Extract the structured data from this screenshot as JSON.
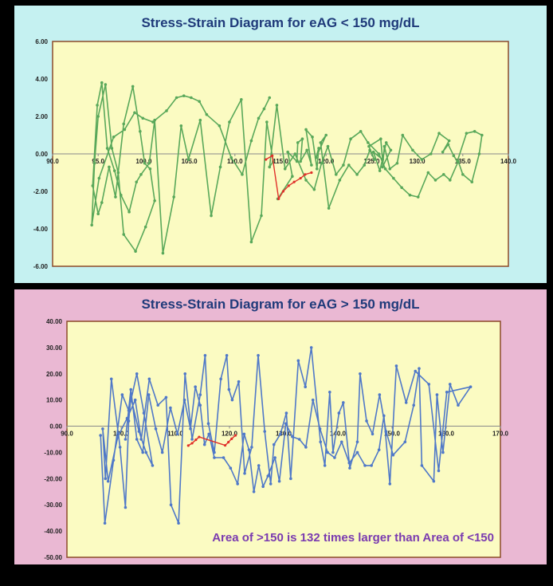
{
  "chart_data": [
    {
      "type": "line",
      "title": "Stress-Strain Diagram for eAG < 150 mg/dL",
      "xlim": [
        90,
        140
      ],
      "ylim": [
        -6,
        6
      ],
      "x_ticks": [
        "90.0",
        "95.0",
        "100.0",
        "105.0",
        "110.0",
        "115.0",
        "120.0",
        "125.0",
        "130.0",
        "135.0",
        "140.0"
      ],
      "y_ticks": [
        "6.00",
        "4.00",
        "2.00",
        "0.00",
        "-2.00",
        "-4.00",
        "-6.00"
      ],
      "colors": {
        "plot_bg": "#fbfbc2",
        "series": "#59a85a",
        "highlight": "#e0302a",
        "axis": "#8b4a2b"
      },
      "series": [
        {
          "x": [
            114.7,
            116.3,
            115.8,
            116.8,
            116.9,
            117.4,
            117.2,
            117.9,
            118.4,
            117.8,
            118.5,
            119.0,
            119.2,
            118.9,
            120.0,
            119.4,
            120.3,
            121.5,
            122.5,
            123.4,
            124.2,
            124.8,
            125.3,
            124.7,
            126.0,
            126.2,
            125.2,
            125.9,
            126.6,
            127.1,
            126.2,
            126.4,
            127.0,
            127.8,
            128.4,
            129.5,
            130.5,
            131.5,
            132.4,
            133.5,
            132.8,
            133.4,
            134.0,
            134.4,
            135.4,
            136.3,
            137.1,
            136.8,
            136.0,
            135.0,
            134.5,
            133.6,
            132.9,
            132.0,
            131.2,
            130.1,
            129.2,
            128.3,
            127.4,
            126.5,
            125.8,
            124.6,
            123.8,
            122.7,
            121.9,
            121.1,
            120.2,
            119.5,
            118.7,
            117.8,
            116.6,
            115.5,
            114.6,
            113.8,
            114.2,
            113.5,
            112.9,
            111.8,
            110.7,
            109.4,
            108.4,
            107.4,
            106.2,
            104.9,
            104.1,
            103.3,
            102.1,
            101.2,
            100.6,
            99.7,
            99.2,
            98.4,
            97.5,
            96.8,
            96.0,
            95.4,
            94.9,
            94.4,
            95.0,
            95.4,
            96.2,
            96.9,
            97.8,
            98.8,
            99.6,
            100.1,
            100.7,
            101.2,
            100.2,
            99.1,
            97.8,
            97.2,
            96.5,
            95.8,
            95.0,
            94.6,
            94.3,
            95.1,
            96.7,
            97.9,
            99.0,
            99.9,
            101.0,
            102.5,
            103.6,
            104.4,
            105.2,
            106.1,
            106.9,
            108.3,
            109.6,
            110.8,
            111.8,
            112.6,
            113.2,
            113.8
          ],
          "y": [
            -2.4,
            -1.2,
            0.1,
            -0.4,
            0.6,
            0.8,
            -0.4,
            0.2,
            -0.6,
            1.3,
            0.9,
            -0.8,
            0.3,
            -0.2,
            1.0,
            0.6,
            -2.9,
            -1.4,
            -0.6,
            -1.1,
            -0.6,
            0.2,
            -0.3,
            0.4,
            0.8,
            -0.3,
            0.1,
            -0.9,
            0.6,
            0.2,
            -0.7,
            0.4,
            -0.8,
            -0.5,
            1.0,
            0.2,
            -0.3,
            0.0,
            1.1,
            0.7,
            0.1,
            0.5,
            -0.1,
            -0.4,
            1.1,
            1.2,
            1.0,
            0.0,
            -1.5,
            -1.1,
            -0.4,
            -1.4,
            -1.1,
            -1.4,
            -1.0,
            -2.3,
            -2.2,
            -1.8,
            -1.3,
            -0.8,
            0.0,
            0.6,
            1.2,
            0.8,
            -0.6,
            -1.1,
            0.4,
            -0.5,
            -1.9,
            -1.4,
            0.0,
            -0.8,
            2.6,
            -0.7,
            -0.4,
            1.7,
            -3.3,
            -4.7,
            2.9,
            1.7,
            -0.7,
            -3.3,
            1.8,
            -0.3,
            1.5,
            -2.3,
            -5.3,
            1.8,
            -0.5,
            -1.1,
            -1.5,
            -3.1,
            -2.2,
            -0.9,
            0.3,
            3.8,
            2.6,
            -1.7,
            -3.2,
            -2.6,
            -0.7,
            -2.3,
            1.6,
            3.6,
            1.2,
            -0.5,
            -0.8,
            -2.5,
            -3.9,
            -5.2,
            -4.3,
            -1.0,
            0.3,
            3.7,
            2.0,
            -0.5,
            -3.8,
            -1.3,
            0.9,
            1.3,
            2.2,
            1.9,
            1.7,
            2.3,
            3.0,
            3.1,
            3.0,
            2.8,
            2.1,
            1.5,
            -0.2,
            -1.1,
            0.7,
            1.9,
            2.4,
            3.0
          ]
        }
      ],
      "highlight": {
        "x": [
          113.4,
          114.1,
          114.8,
          115.3,
          115.9,
          116.5,
          117.2,
          117.7,
          118.4
        ],
        "y": [
          -0.3,
          -0.1,
          -2.4,
          -2.0,
          -1.7,
          -1.5,
          -1.3,
          -1.1,
          -1.0
        ]
      }
    },
    {
      "type": "line",
      "title": "Stress-Strain Diagram for eAG > 150 mg/dL",
      "xlim": [
        90,
        170
      ],
      "ylim": [
        -50,
        40
      ],
      "x_ticks": [
        "90.0",
        "100.0",
        "110.0",
        "120.0",
        "130.0",
        "140.0",
        "150.0",
        "160.0",
        "170.0"
      ],
      "y_ticks": [
        "40.00",
        "30.00",
        "20.00",
        "10.00",
        "0.00",
        "-10.00",
        "-20.00",
        "-30.00",
        "-40.00",
        "-50.00"
      ],
      "annotation": "Area of >150 is 132 times larger than Area of <150",
      "colors": {
        "plot_bg": "#fbfbc2",
        "series": "#4f78c8",
        "highlight": "#e0302a",
        "axis": "#8b4a2b",
        "annotation": "#7a3bb0"
      },
      "series": [
        {
          "x": [
            96.2,
            97.0,
            98.6,
            100.2,
            101.4,
            102.9,
            104.2,
            105.8,
            104.6,
            103.3,
            101.8,
            101.4,
            100.8,
            99.8,
            98.2,
            97.1,
            96.6,
            97.6,
            99.4,
            101.1,
            102.6,
            103.7,
            105.2,
            106.8,
            108.3,
            109.2,
            110.6,
            111.8,
            113.1,
            114.6,
            115.5,
            116.1,
            117.2,
            118.4,
            119.5,
            119.9,
            120.5,
            121.7,
            122.8,
            124.1,
            125.3,
            126.5,
            127.6,
            128.2,
            129.4,
            130.5,
            131.3,
            132.7,
            134.0,
            135.1,
            136.8,
            137.6,
            138.5,
            139.1,
            140.2,
            141.0,
            142.2,
            143.6,
            144.1,
            145.3,
            146.4,
            147.7,
            148.9,
            150.2,
            152.4,
            154.0,
            155.0,
            155.5,
            157.7,
            158.3,
            159.4,
            160.7,
            162.2,
            164.5,
            160.1,
            158.6,
            156.8,
            154.3,
            152.6,
            150.8,
            149.6,
            148.5,
            147.6,
            146.2,
            145.0,
            143.6,
            142.1,
            140.7,
            139.4,
            138.1,
            136.7,
            135.4,
            134.1,
            132.9,
            131.6,
            130.4,
            129.2,
            128.4,
            127.1,
            126.2,
            125.4,
            124.5,
            123.6,
            122.7,
            121.5,
            120.2,
            118.9,
            117.2,
            116.2,
            115.4,
            114.6,
            113.7,
            112.8,
            111.7,
            110.4,
            109.1,
            107.6,
            106.4,
            105.1,
            104.0,
            102.9,
            101.8,
            100.8
          ],
          "y": [
            -3.5,
            -37,
            -13,
            12,
            6,
            20,
            5,
            -15,
            -10,
            -2,
            11,
            2,
            -31,
            -8,
            18,
            -20,
            -1,
            -21,
            -4,
            3,
            10,
            -5,
            18,
            8,
            11,
            -30,
            -37,
            20,
            -5,
            12,
            27,
            1,
            -10,
            18,
            27,
            14,
            10,
            17,
            -18,
            -8,
            27,
            -2,
            -22,
            -7,
            -3,
            5,
            -20,
            25,
            15,
            30,
            -6,
            -15,
            13,
            -10,
            5,
            9,
            -16,
            -6,
            20,
            2,
            -3,
            12,
            -2,
            -11,
            -6,
            8,
            22,
            -15,
            -21,
            12,
            -10,
            16,
            8,
            15,
            13,
            -17,
            16,
            21,
            9,
            23,
            -22,
            4,
            -9,
            -15,
            -15,
            -10,
            -14,
            -6,
            -12,
            -10,
            -1,
            10,
            -8,
            -5,
            -4,
            1,
            -21,
            -12,
            -19,
            -23,
            -15,
            -25,
            -9,
            -3,
            -22,
            -16,
            -12,
            -12,
            -3,
            -7,
            8,
            15,
            -1,
            10,
            -3,
            7,
            -10,
            -1,
            12,
            -10,
            -5,
            14,
            -5
          ]
        }
      ],
      "highlight": {
        "x": [
          112.4,
          113.1,
          113.8,
          114.4,
          119.2,
          119.8,
          120.4,
          121.1
        ],
        "y": [
          -7.4,
          -6.5,
          -5.2,
          -4.1,
          -7.3,
          -6.1,
          -4.8,
          -3.5
        ]
      }
    }
  ]
}
